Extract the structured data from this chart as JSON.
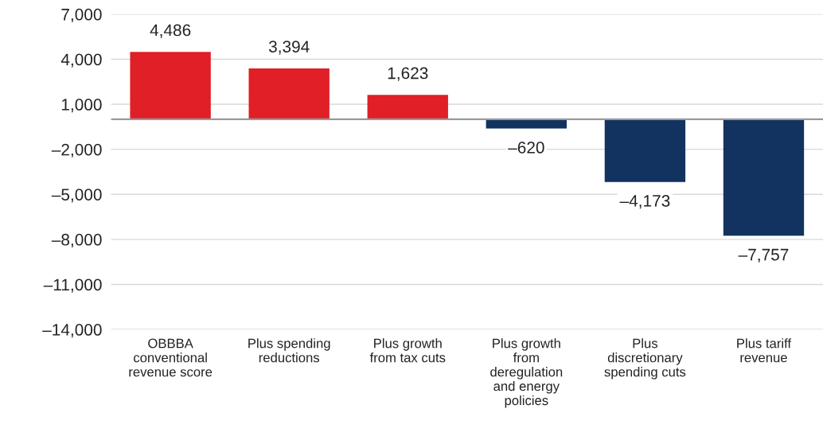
{
  "chart_data": {
    "type": "bar",
    "categories": [
      "OBBBA\nconventional\nrevenue score",
      "Plus spending\nreductions",
      "Plus growth\nfrom tax cuts",
      "Plus growth\nfrom\nderegulation\nand energy\npolicies",
      "Plus\ndiscretionary\nspending cuts",
      "Plus tariff\nrevenue"
    ],
    "values": [
      4486,
      3394,
      1623,
      -620,
      -4173,
      -7757
    ],
    "colors": [
      "#e01f26",
      "#e01f26",
      "#e01f26",
      "#12335f",
      "#12335f",
      "#12335f"
    ],
    "value_labels": [
      "4,486",
      "3,394",
      "1,623",
      "–620",
      "–4,173",
      "–7,757"
    ],
    "ylim": [
      -14000,
      7000
    ],
    "yticks": [
      {
        "value": 7000,
        "label": "7,000"
      },
      {
        "value": 4000,
        "label": "4,000"
      },
      {
        "value": 1000,
        "label": "1,000"
      },
      {
        "value": -2000,
        "label": "–2,000"
      },
      {
        "value": -5000,
        "label": "–5,000"
      },
      {
        "value": -8000,
        "label": "–8,000"
      },
      {
        "value": -11000,
        "label": "–11,000"
      },
      {
        "value": -14000,
        "label": "–14,000"
      }
    ],
    "ref_lines": [
      {
        "axis": "y",
        "value": 0,
        "color": "#999999"
      }
    ],
    "grid": "y",
    "legend": false
  }
}
